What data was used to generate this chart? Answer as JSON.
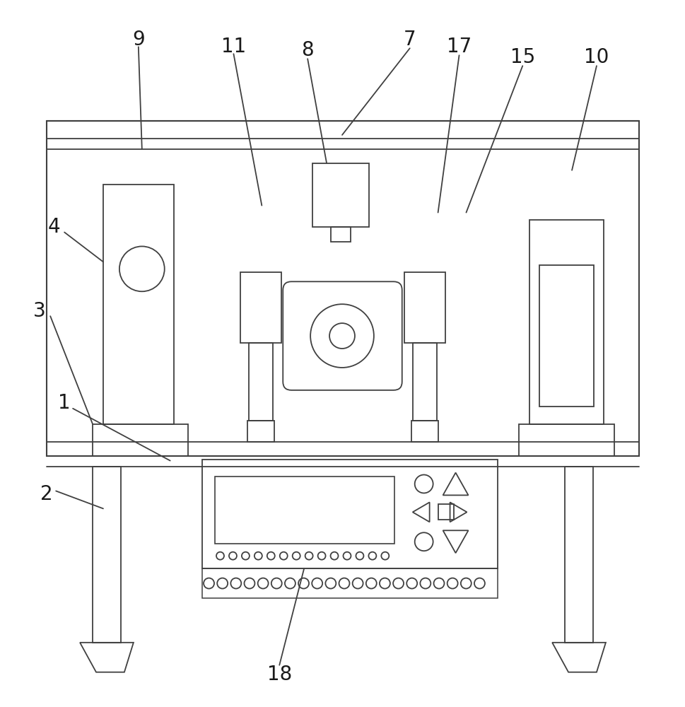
{
  "bg_color": "#ffffff",
  "line_color": "#404040",
  "lw": 1.3,
  "fig_w": 9.69,
  "fig_h": 10.0
}
